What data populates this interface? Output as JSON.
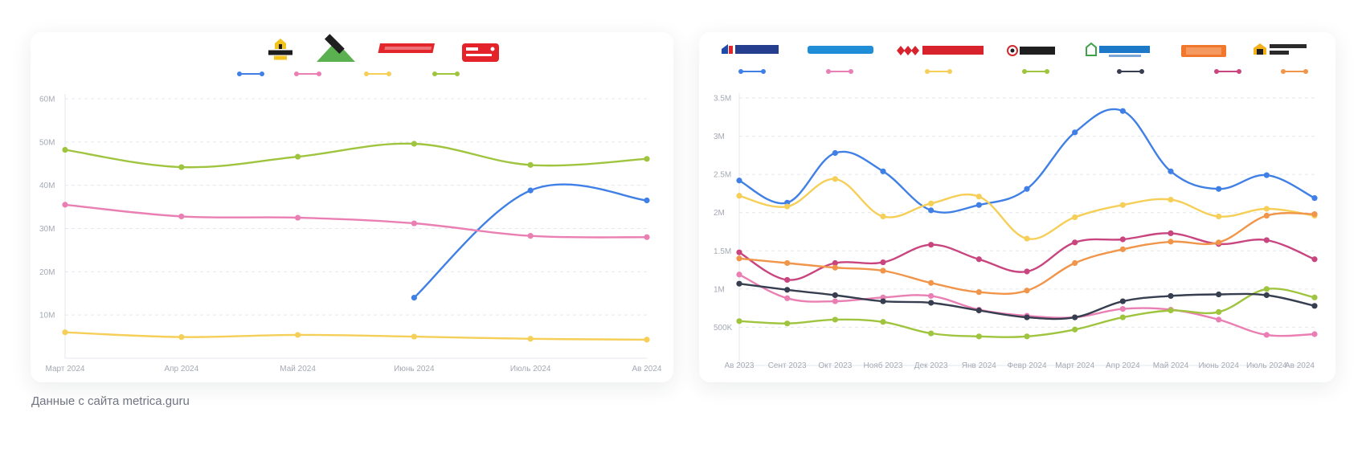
{
  "source_note": "Данные с сайта metrica.guru",
  "chart_data": [
    {
      "type": "line",
      "title": "",
      "xlabel": "",
      "ylabel": "",
      "categories": [
        "Март 2024",
        "Апр 2024",
        "Май 2024",
        "Июнь 2024",
        "Июль 2024",
        "Ав 2024"
      ],
      "y_ticks": [
        "10M",
        "20M",
        "30M",
        "40M",
        "50M",
        "60M"
      ],
      "ylim": [
        0,
        60000000
      ],
      "grid": true,
      "legend_position": "top-center",
      "series": [
        {
          "name": "ЛЕМАНА ПРО",
          "color": "#4080e6",
          "values": [
            null,
            null,
            null,
            14000000,
            38800000,
            36500000
          ]
        },
        {
          "name": "LEROY MERLIN",
          "color": "#ea7fb3",
          "values": [
            35500000,
            32800000,
            32500000,
            31200000,
            28300000,
            28000000
          ]
        },
        {
          "name": "ПЕТРОВИЧ",
          "color": "#f5cf58",
          "values": [
            6000000,
            4900000,
            5400000,
            5000000,
            4500000,
            4300000
          ]
        },
        {
          "name": "Все инструменты",
          "color": "#9fc43e",
          "values": [
            48200000,
            44200000,
            46600000,
            49600000,
            44700000,
            46100000
          ]
        }
      ]
    },
    {
      "type": "line",
      "title": "",
      "xlabel": "",
      "ylabel": "",
      "categories": [
        "Ав 2023",
        "Сент 2023",
        "Окт 2023",
        "Нояб 2023",
        "Дек 2023",
        "Янв 2024",
        "Февр 2024",
        "Март 2024",
        "Апр 2024",
        "Май 2024",
        "Июнь 2024",
        "Июль 2024",
        "Ав 2024"
      ],
      "y_ticks": [
        "500K",
        "1M",
        "1.5M",
        "2M",
        "2.5M",
        "3M",
        "3.5M"
      ],
      "ylim": [
        0,
        3500000
      ],
      "grid": true,
      "legend_position": "top",
      "series": [
        {
          "name": "Бауцентр",
          "color": "#4080e6",
          "values": [
            2420000,
            2130000,
            2780000,
            2540000,
            2030000,
            2100000,
            2310000,
            3050000,
            3330000,
            2540000,
            2310000,
            2490000,
            2190000
          ]
        },
        {
          "name": "castorama",
          "color": "#ea7fb3",
          "values": [
            1190000,
            880000,
            840000,
            890000,
            910000,
            730000,
            650000,
            630000,
            740000,
            730000,
            600000,
            400000,
            410000
          ]
        },
        {
          "name": "МаксидоМ",
          "color": "#f5cf58",
          "values": [
            2220000,
            2080000,
            2440000,
            1950000,
            2120000,
            2210000,
            1660000,
            1940000,
            2100000,
            2170000,
            1950000,
            2050000,
            1960000
          ]
        },
        {
          "name": "САТУРН",
          "color": "#9fc43e",
          "values": [
            580000,
            550000,
            600000,
            570000,
            420000,
            380000,
            380000,
            470000,
            630000,
            720000,
            700000,
            1000000,
            890000
          ]
        },
        {
          "name": "Стройландия",
          "color": "#363e4f",
          "values": [
            1070000,
            990000,
            920000,
            840000,
            820000,
            720000,
            630000,
            630000,
            840000,
            910000,
            930000,
            920000,
            780000
          ]
        },
        {
          "name": "OBI",
          "color": "#c9457f",
          "values": [
            1480000,
            1120000,
            1340000,
            1350000,
            1580000,
            1390000,
            1230000,
            1610000,
            1650000,
            1730000,
            1590000,
            1640000,
            1390000
          ]
        },
        {
          "name": "строительный двор",
          "color": "#f0954a",
          "values": [
            1400000,
            1340000,
            1280000,
            1240000,
            1080000,
            960000,
            980000,
            1340000,
            1520000,
            1620000,
            1610000,
            1960000,
            1980000
          ]
        }
      ]
    }
  ]
}
